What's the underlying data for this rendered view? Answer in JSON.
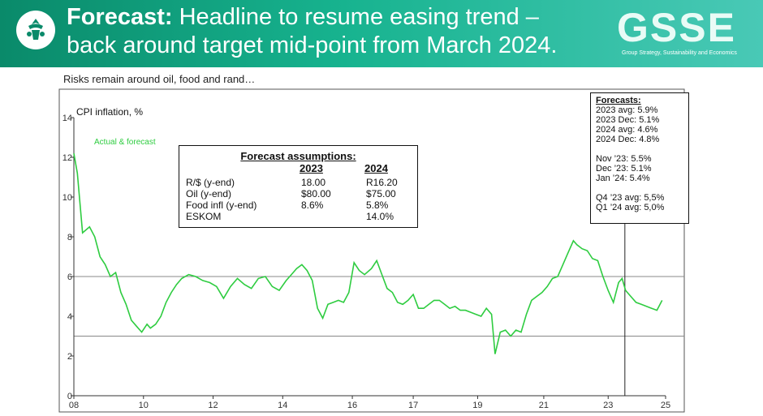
{
  "header": {
    "title_bold": "Forecast:",
    "title_line1": " Headline to resume easing trend –",
    "title_line2": "back around target mid-point from March 2024.",
    "brand_logo_text": "GSSE",
    "brand_logo_sub": "Group Strategy, Sustainability and Economics",
    "colors": {
      "green_dark": "#0a8a6a",
      "green_light": "#49c9b6"
    }
  },
  "subtitle": "Risks remain around oil, food and rand…",
  "chart_data": {
    "type": "line",
    "ylabel": "CPI inflation, %",
    "ylim": [
      0,
      14
    ],
    "yticks": [
      0,
      2,
      4,
      6,
      8,
      10,
      12,
      14
    ],
    "xlim": [
      2008,
      2025
    ],
    "xticks": [
      {
        "v": 2008,
        "label": "08"
      },
      {
        "v": 2010,
        "label": "10"
      },
      {
        "v": 2012,
        "label": "12"
      },
      {
        "v": 2014,
        "label": "14"
      },
      {
        "v": 2016,
        "label": "16"
      },
      {
        "v": 2017.75,
        "label": "17"
      },
      {
        "v": 2019.6,
        "label": "19"
      },
      {
        "v": 2021.5,
        "label": "21"
      },
      {
        "v": 2023.35,
        "label": "23"
      },
      {
        "v": 2025,
        "label": "25"
      }
    ],
    "reference_lines": [
      6,
      3
    ],
    "forecast_start": 2023.83,
    "series": [
      {
        "name": "Actual & forecast",
        "color": "#2ecc40",
        "x": [
          2008.0,
          2008.1,
          2008.25,
          2008.45,
          2008.6,
          2008.75,
          2008.9,
          2009.05,
          2009.2,
          2009.35,
          2009.5,
          2009.65,
          2009.8,
          2009.95,
          2010.1,
          2010.2,
          2010.35,
          2010.5,
          2010.65,
          2010.8,
          2010.95,
          2011.1,
          2011.3,
          2011.5,
          2011.7,
          2011.9,
          2012.1,
          2012.3,
          2012.5,
          2012.7,
          2012.9,
          2013.1,
          2013.3,
          2013.5,
          2013.7,
          2013.9,
          2014.1,
          2014.25,
          2014.4,
          2014.55,
          2014.7,
          2014.85,
          2015.0,
          2015.15,
          2015.3,
          2015.45,
          2015.6,
          2015.75,
          2015.9,
          2016.05,
          2016.2,
          2016.35,
          2016.55,
          2016.7,
          2016.85,
          2017.0,
          2017.15,
          2017.3,
          2017.45,
          2017.6,
          2017.75,
          2017.9,
          2018.05,
          2018.2,
          2018.35,
          2018.5,
          2018.65,
          2018.8,
          2018.95,
          2019.1,
          2019.25,
          2019.4,
          2019.55,
          2019.7,
          2019.85,
          2020.0,
          2020.1,
          2020.25,
          2020.4,
          2020.55,
          2020.7,
          2020.85,
          2021.0,
          2021.15,
          2021.3,
          2021.45,
          2021.6,
          2021.75,
          2021.9,
          2022.05,
          2022.2,
          2022.35,
          2022.45,
          2022.6,
          2022.75,
          2022.9,
          2023.05,
          2023.2,
          2023.35,
          2023.5,
          2023.65,
          2023.75,
          2023.85,
          2024.0,
          2024.15,
          2024.3,
          2024.45,
          2024.6,
          2024.75,
          2024.9
        ],
        "y": [
          12.2,
          11.2,
          8.2,
          8.5,
          8.0,
          7.0,
          6.6,
          6.0,
          6.2,
          5.2,
          4.6,
          3.8,
          3.5,
          3.2,
          3.6,
          3.4,
          3.6,
          4.0,
          4.7,
          5.2,
          5.6,
          5.9,
          6.1,
          6.0,
          5.8,
          5.7,
          5.5,
          4.9,
          5.5,
          5.9,
          5.6,
          5.4,
          5.9,
          6.0,
          5.5,
          5.3,
          5.8,
          6.1,
          6.4,
          6.6,
          6.3,
          5.8,
          4.4,
          3.9,
          4.6,
          4.7,
          4.8,
          4.7,
          5.2,
          6.7,
          6.3,
          6.1,
          6.4,
          6.8,
          6.1,
          5.4,
          5.2,
          4.7,
          4.6,
          4.8,
          5.1,
          4.4,
          4.4,
          4.6,
          4.8,
          4.8,
          4.6,
          4.4,
          4.5,
          4.3,
          4.3,
          4.2,
          4.1,
          4.0,
          4.4,
          4.1,
          2.1,
          3.2,
          3.3,
          3.0,
          3.3,
          3.2,
          4.1,
          4.8,
          5.0,
          5.2,
          5.5,
          5.9,
          6.0,
          6.6,
          7.2,
          7.8,
          7.6,
          7.4,
          7.3,
          6.9,
          6.8,
          6.0,
          5.3,
          4.7,
          5.7,
          5.9,
          5.3,
          5.0,
          4.7,
          4.6,
          4.5,
          4.4,
          4.3,
          4.8
        ]
      }
    ],
    "forecasts_box": {
      "heading": "Forecasts:",
      "group1": [
        "2023 avg: 5.9%",
        "2023 Dec: 5.1%",
        "2024 avg: 4.6%",
        "2024 Dec: 4.8%"
      ],
      "group2": [
        "Nov ’23:   5.5%",
        "Dec ’23:   5.1%",
        "Jan ’24:    5.4%"
      ],
      "group3": [
        "Q4 ’23 avg:  5,5%",
        "Q1 ’24 avg:  5,0%"
      ]
    },
    "assumptions": {
      "title": "Forecast assumptions:",
      "col_2023": "2023",
      "col_2024": "2024",
      "rows": [
        {
          "label": "R/$ (y-end)",
          "v2023": "18.00",
          "v2024": "R16.20"
        },
        {
          "label": "Oil (y-end)",
          "v2023": "$80.00",
          "v2024": "$75.00"
        },
        {
          "label": "Food infl (y-end)",
          "v2023": "8.6%",
          "v2024": "5.8%"
        },
        {
          "label": "ESKOM",
          "v2023": "",
          "v2024": "14.0%"
        }
      ]
    }
  }
}
